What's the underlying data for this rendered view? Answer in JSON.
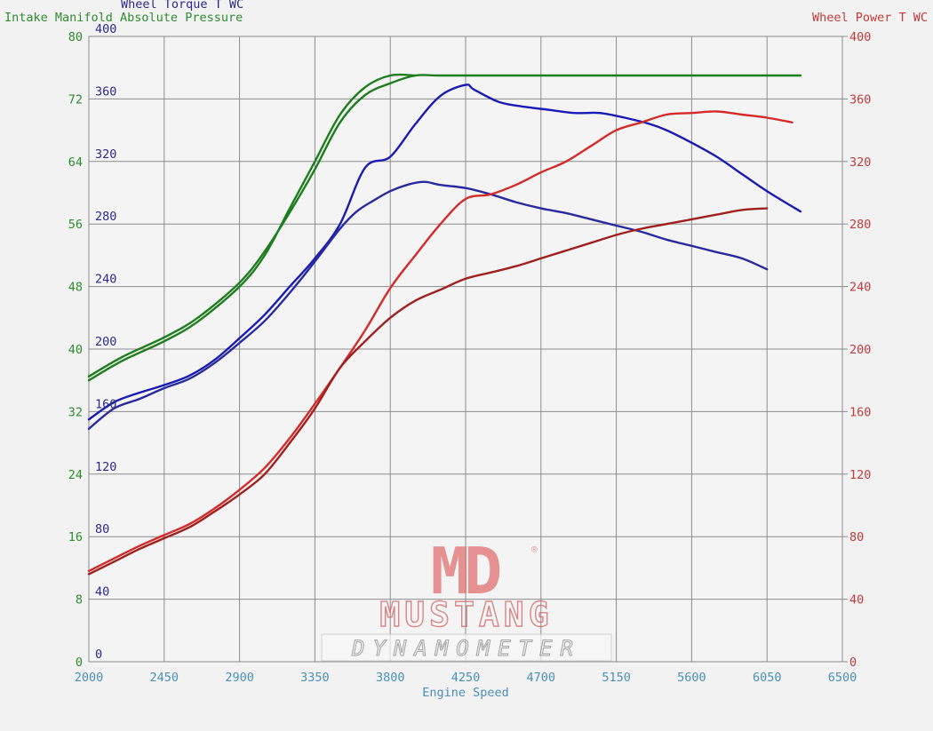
{
  "chart_data": {
    "type": "line",
    "xlabel": "Engine Speed",
    "x_ticks": [
      2000,
      2450,
      2900,
      3350,
      3800,
      4250,
      4700,
      5150,
      5600,
      6050,
      6500
    ],
    "xlim": [
      2000,
      6500
    ],
    "grid": true,
    "axes": {
      "manifold_pressure": {
        "label": "Intake Manifold Absolute Pressure",
        "range": [
          0,
          80
        ],
        "ticks": [
          0,
          8,
          16,
          24,
          32,
          40,
          48,
          56,
          64,
          72,
          80
        ],
        "color": "#2e8b2e"
      },
      "torque": {
        "label": "Wheel Torque T WC",
        "range": [
          0,
          400
        ],
        "ticks": [
          0,
          40,
          80,
          120,
          160,
          200,
          240,
          280,
          320,
          360,
          400
        ],
        "color": "#2a2a8c"
      },
      "power": {
        "label": "Wheel Power T WC",
        "range": [
          0,
          400
        ],
        "ticks": [
          0,
          40,
          80,
          120,
          160,
          200,
          240,
          280,
          320,
          360,
          400
        ],
        "color": "#c43a3a"
      }
    },
    "series": [
      {
        "axis": "manifold_pressure",
        "color": "#1e7d1e",
        "x": [
          2000,
          2200,
          2450,
          2650,
          2900,
          3050,
          3200,
          3350,
          3500,
          3650,
          3800,
          3950,
          4100,
          4500,
          5000,
          5500,
          6000,
          6250
        ],
        "values": [
          36.5,
          39,
          41.5,
          44,
          48.5,
          52.5,
          57.5,
          63,
          69,
          72.5,
          74,
          75,
          75,
          75,
          75,
          75,
          75,
          75
        ]
      },
      {
        "axis": "manifold_pressure",
        "color": "#1e7d1e",
        "x": [
          2000,
          2200,
          2450,
          2650,
          2900,
          3050,
          3200,
          3350,
          3500,
          3650,
          3800,
          3950
        ],
        "values": [
          36,
          38.5,
          41,
          43.5,
          48,
          52,
          58,
          64,
          70,
          73.5,
          75,
          75
        ]
      },
      {
        "axis": "torque",
        "color": "#1a1ab4",
        "x": [
          2000,
          2150,
          2300,
          2450,
          2600,
          2750,
          2900,
          3050,
          3200,
          3350,
          3500,
          3650,
          3800,
          3950,
          4100,
          4250,
          4300,
          4450,
          4600,
          4750,
          4900,
          5050,
          5200,
          5350,
          5450,
          5600,
          5750,
          5900,
          6050,
          6250
        ],
        "values": [
          155,
          166,
          172,
          177,
          183,
          193,
          207,
          222,
          240,
          258,
          280,
          316,
          323,
          344,
          362,
          369,
          366,
          358,
          355,
          353,
          351,
          351,
          348,
          344,
          340,
          332,
          323,
          312,
          301,
          288
        ]
      },
      {
        "axis": "torque",
        "color": "#2a2aa0",
        "x": [
          2000,
          2150,
          2300,
          2450,
          2600,
          2750,
          2900,
          3050,
          3200,
          3350,
          3500,
          3600,
          3700,
          3800,
          3900,
          4000,
          4100,
          4250,
          4400,
          4550,
          4700,
          4850,
          5000,
          5150,
          5300,
          5450,
          5600,
          5750,
          5900,
          6050
        ],
        "values": [
          149,
          162,
          168,
          175,
          181,
          191,
          204,
          218,
          236,
          256,
          277,
          288,
          295,
          301,
          305,
          307,
          305,
          303,
          299,
          294,
          290,
          287,
          283,
          279,
          275,
          270,
          266,
          262,
          258,
          251
        ]
      },
      {
        "axis": "power",
        "color": "#d42a2a",
        "x": [
          2000,
          2150,
          2300,
          2450,
          2600,
          2750,
          2900,
          3050,
          3200,
          3350,
          3500,
          3650,
          3800,
          3950,
          4100,
          4250,
          4400,
          4550,
          4700,
          4850,
          5000,
          5150,
          5300,
          5450,
          5600,
          5750,
          5900,
          6050,
          6200
        ],
        "values": [
          58,
          66,
          74,
          81,
          88,
          98,
          110,
          124,
          143,
          165,
          188,
          212,
          239,
          260,
          280,
          296,
          299,
          305,
          313,
          320,
          330,
          340,
          345,
          350,
          351,
          352,
          350,
          348,
          345
        ]
      },
      {
        "axis": "power",
        "color": "#a02020",
        "x": [
          2000,
          2150,
          2300,
          2450,
          2600,
          2750,
          2900,
          3050,
          3200,
          3350,
          3500,
          3650,
          3800,
          3950,
          4100,
          4250,
          4400,
          4550,
          4700,
          4850,
          5000,
          5150,
          5300,
          5450,
          5600,
          5750,
          5900,
          6050
        ],
        "values": [
          56,
          64,
          72,
          79,
          86,
          96,
          107,
          120,
          140,
          162,
          188,
          205,
          220,
          231,
          238,
          245,
          249,
          253,
          258,
          263,
          268,
          273,
          277,
          280,
          283,
          286,
          289,
          290
        ]
      }
    ]
  },
  "watermark": {
    "logo": "MD",
    "registered": "®",
    "line1": "MUSTANG",
    "line2": "DYNAMOMETER"
  }
}
